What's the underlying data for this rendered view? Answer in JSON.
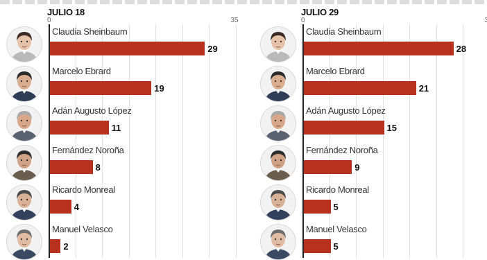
{
  "chart_data": [
    {
      "type": "bar",
      "title": "JULIO 18",
      "ticks": [
        "0",
        "35"
      ],
      "xlim": [
        0,
        35
      ],
      "categories": [
        "Claudia Sheinbaum",
        "Marcelo Ebrard",
        "Adán Augusto López",
        "Fernández Noroña",
        "Ricardo Monreal",
        "Manuel Velasco"
      ],
      "values": [
        29,
        19,
        11,
        8,
        4,
        2
      ],
      "bar_color": "#b8311f"
    },
    {
      "type": "bar",
      "title": "JULIO 29",
      "ticks": [
        "0",
        "3"
      ],
      "xlim": [
        0,
        35
      ],
      "categories": [
        "Claudia Sheinbaum",
        "Marcelo Ebrard",
        "Adán Augusto López",
        "Fernández Noroña",
        "Ricardo Monreal",
        "Manuel Velasco"
      ],
      "values": [
        28,
        21,
        15,
        9,
        5,
        5
      ],
      "bar_color": "#b8311f"
    }
  ],
  "avatars": [
    {
      "icon": "person-photo-icon",
      "hair": "#3b2a22",
      "skin": "#e6c3a8",
      "shirt": "#b9b9b9"
    },
    {
      "icon": "person-photo-icon",
      "hair": "#2b2b2b",
      "skin": "#d9ad8e",
      "shirt": "#2f3c55"
    },
    {
      "icon": "person-photo-icon",
      "hair": "#a9a9a9",
      "skin": "#d8a789",
      "shirt": "#5a6272"
    },
    {
      "icon": "person-photo-icon",
      "hair": "#2d2d2d",
      "skin": "#cfa286",
      "shirt": "#6b5d4c"
    },
    {
      "icon": "person-photo-icon",
      "hair": "#4a4a4a",
      "skin": "#d9b197",
      "shirt": "#33415d"
    },
    {
      "icon": "person-photo-icon",
      "hair": "#6e6e6e",
      "skin": "#e2bca2",
      "shirt": "#3b4a63"
    }
  ]
}
